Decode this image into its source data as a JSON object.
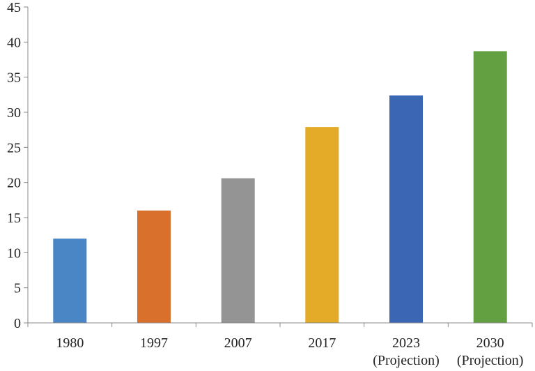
{
  "chart_data": {
    "type": "bar",
    "categories": [
      "1980",
      "1997",
      "2007",
      "2017",
      "2023",
      "2030"
    ],
    "category_sublabels": [
      "",
      "",
      "",
      "",
      "(Projection)",
      "(Projection)"
    ],
    "values": [
      12.0,
      16.0,
      20.6,
      27.9,
      32.4,
      38.7
    ],
    "colors": [
      "#4a86c6",
      "#d9702b",
      "#949494",
      "#e3ab27",
      "#3a66b3",
      "#63a041"
    ],
    "ylim": [
      0,
      45
    ],
    "yticks": [
      0,
      5,
      10,
      15,
      20,
      25,
      30,
      35,
      40,
      45
    ],
    "grid": false,
    "title": "",
    "xlabel": "",
    "ylabel": ""
  }
}
